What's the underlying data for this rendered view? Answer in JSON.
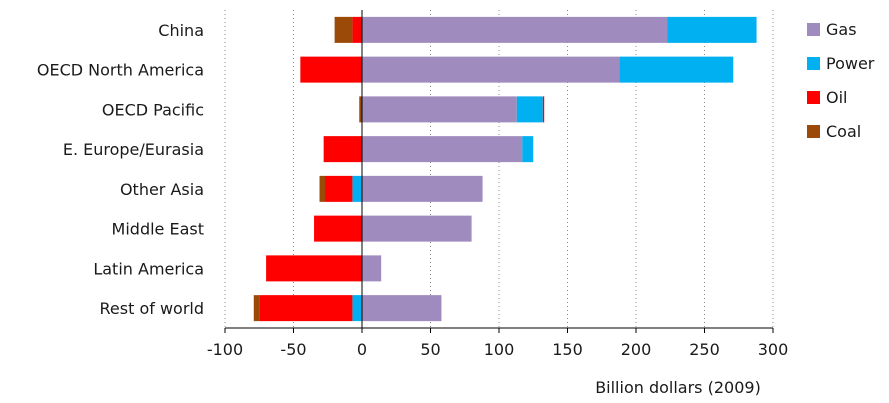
{
  "chart_data": {
    "type": "bar",
    "orientation": "horizontal",
    "stacked": true,
    "categories": [
      "China",
      "OECD North America",
      "OECD Pacific",
      "E. Europe/Eurasia",
      "Other Asia",
      "Middle East",
      "Latin America",
      "Rest of world"
    ],
    "series": [
      {
        "name": "Gas",
        "color": "#a08bbf",
        "values": [
          223,
          188,
          113,
          117,
          88,
          80,
          14,
          58
        ]
      },
      {
        "name": "Power",
        "color": "#00b0f0",
        "values": [
          65,
          83,
          19,
          8,
          -7,
          0,
          0,
          -7
        ]
      },
      {
        "name": "Oil",
        "color": "#ff0000",
        "values": [
          -7,
          -45,
          1,
          -28,
          -20,
          -35,
          -70,
          -68
        ]
      },
      {
        "name": "Coal",
        "color": "#9c4a08",
        "values": [
          -13,
          0,
          -2,
          0,
          -4,
          0,
          0,
          -4
        ]
      }
    ],
    "xlabel": "Billion dollars (2009)",
    "ylabel": "",
    "xlim": [
      -100,
      300
    ],
    "xticks": [
      -100,
      -50,
      0,
      50,
      100,
      150,
      200,
      250,
      300
    ],
    "grid": "vertical dotted",
    "legend": "right"
  }
}
